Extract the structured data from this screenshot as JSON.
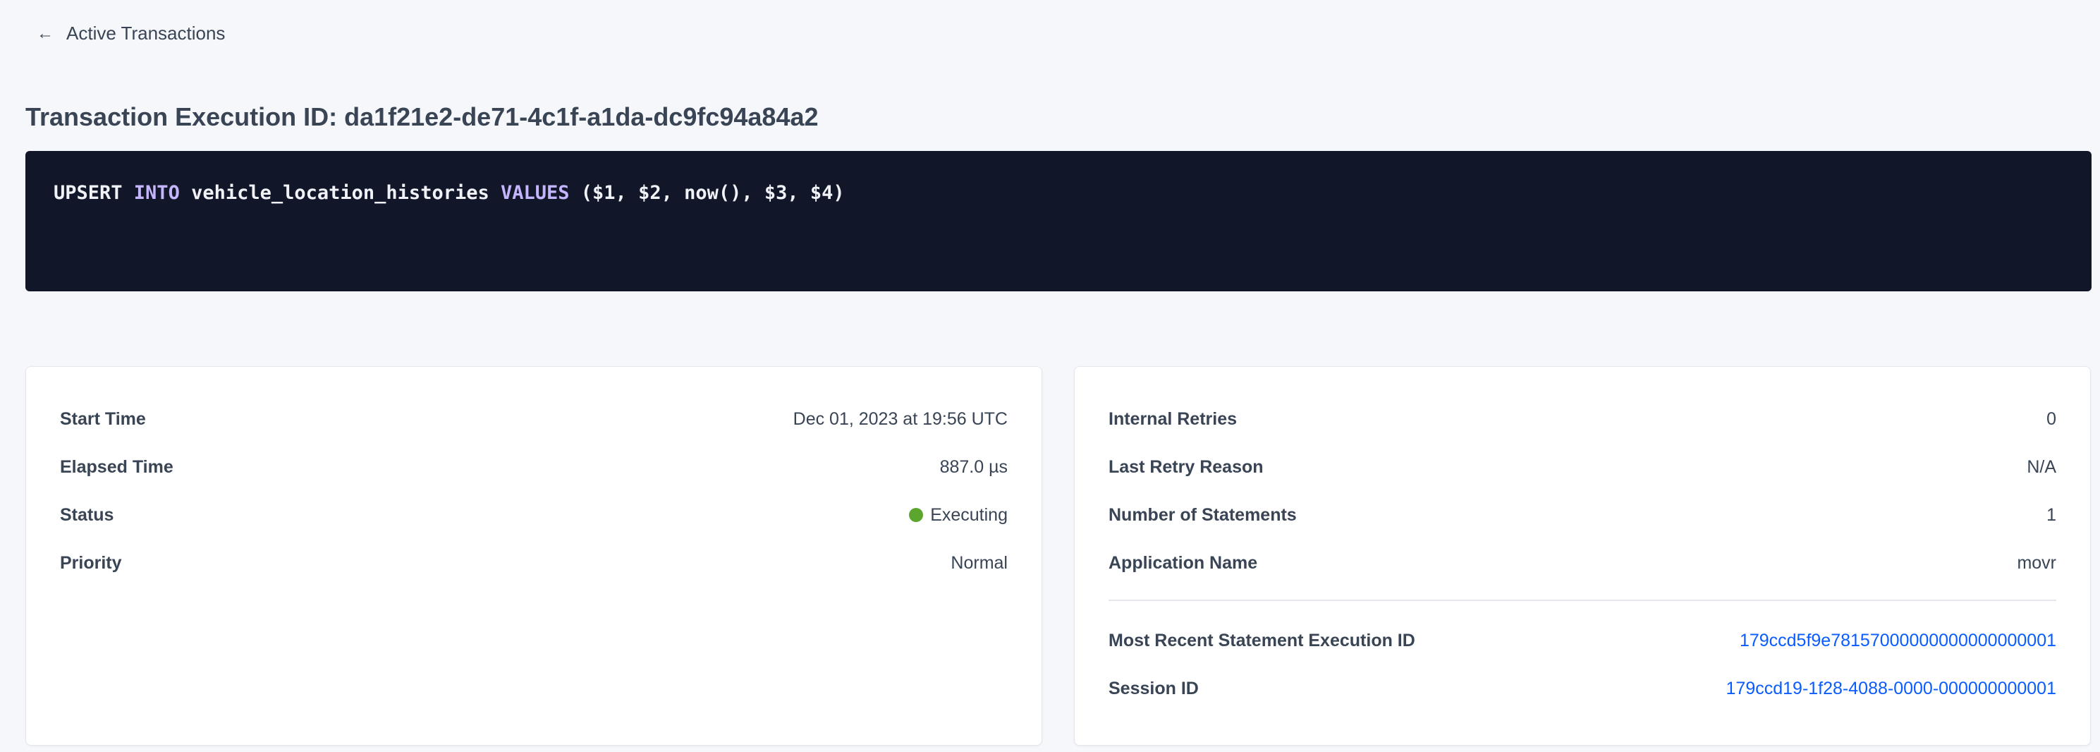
{
  "back_link": {
    "label": "Active Transactions",
    "icon": "arrow-left-icon"
  },
  "title": "Transaction Execution ID: da1f21e2-de71-4c1f-a1da-dc9fc94a84a2",
  "statement": {
    "tokens": [
      {
        "text": "UPSERT ",
        "keyword": false
      },
      {
        "text": "INTO",
        "keyword": true
      },
      {
        "text": " vehicle_location_histories ",
        "keyword": false
      },
      {
        "text": "VALUES",
        "keyword": true
      },
      {
        "text": " ($1, $2, now(), $3, $4)",
        "keyword": false
      }
    ]
  },
  "left_card": {
    "rows": [
      {
        "label": "Start Time",
        "value": "Dec 01, 2023 at 19:56 UTC"
      },
      {
        "label": "Elapsed Time",
        "value": "887.0 µs"
      },
      {
        "label": "Status",
        "value": "Executing",
        "status_color": "#5ca62e"
      },
      {
        "label": "Priority",
        "value": "Normal"
      }
    ]
  },
  "right_card": {
    "rows": [
      {
        "label": "Internal Retries",
        "value": "0"
      },
      {
        "label": "Last Retry Reason",
        "value": "N/A"
      },
      {
        "label": "Number of Statements",
        "value": "1"
      },
      {
        "label": "Application Name",
        "value": "movr"
      }
    ],
    "links": [
      {
        "label": "Most Recent Statement Execution ID",
        "value": "179ccd5f9e78157000000000000000001"
      },
      {
        "label": "Session ID",
        "value": "179ccd19-1f28-4088-0000-000000000001"
      }
    ]
  },
  "colors": {
    "link": "#0a5cff",
    "code_bg": "#111729",
    "keyword": "#c4b5fd"
  }
}
